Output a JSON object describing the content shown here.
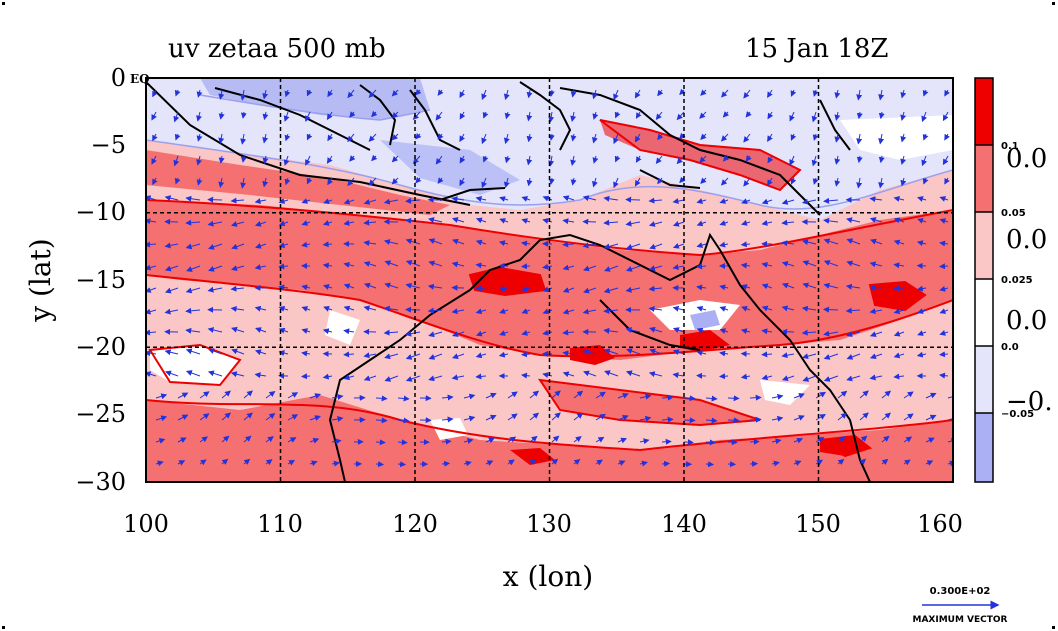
{
  "title_left": "uv zetaa 500 mb",
  "title_right": "15 Jan 18Z",
  "x_axis": {
    "label": "x (lon)",
    "ticks": [
      "100",
      "110",
      "120",
      "130",
      "140",
      "150",
      "160"
    ],
    "range": [
      100,
      160
    ]
  },
  "y_axis": {
    "label": "y (lat)",
    "ticks": [
      "0",
      "−5",
      "−10",
      "−15",
      "−20",
      "−25",
      "−30"
    ],
    "range": [
      -30,
      0
    ]
  },
  "eq_label": "EQ",
  "colorbar": {
    "levels": [
      {
        "color": "#ee0000",
        "small_label": "0.1"
      },
      {
        "color": "#f57070",
        "small_label": "0.05"
      },
      {
        "color": "#fbc6c6",
        "small_label": "0.025"
      },
      {
        "color": "#ffffff",
        "small_label": "0.0"
      },
      {
        "color": "#e4e4fb",
        "small_label": "−0.05"
      },
      {
        "color": "#aab0f3",
        "small_label": ""
      }
    ],
    "big_labels": [
      "0.0",
      "0.0",
      "0.0",
      "−0."
    ]
  },
  "vector_key": {
    "value": "0.300E+02",
    "label": "MAXIMUM VECTOR"
  },
  "colors": {
    "vector": "#2233dd",
    "coast": "#000000",
    "grid": "#000000"
  }
}
